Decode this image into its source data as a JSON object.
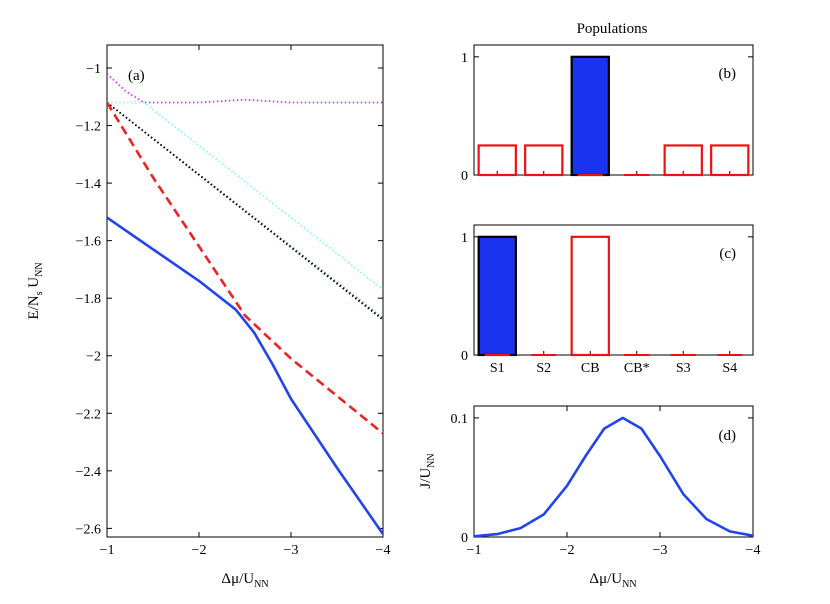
{
  "figure_title": "Populations",
  "chart_data": [
    {
      "id": "a",
      "type": "line",
      "panel_label": "(a)",
      "xlabel": "Δμ/U",
      "xlabel_sub": "NN",
      "ylabel_parts": [
        "E/N",
        "s",
        " U",
        "NN"
      ],
      "xlim": [
        -1,
        -4
      ],
      "ylim": [
        -2.63,
        -0.92
      ],
      "xticks": [
        -1,
        -2,
        -3,
        -4
      ],
      "xtick_labels": [
        "−1",
        "−2",
        "−3",
        "−4"
      ],
      "yticks": [
        -1,
        -1.2,
        -1.4,
        -1.6,
        -1.8,
        -2,
        -2.2,
        -2.4,
        -2.6
      ],
      "ytick_labels": [
        "−1",
        "−1.2",
        "−1.4",
        "−1.6",
        "−1.8",
        "−2",
        "−2.2",
        "−2.4",
        "−2.6"
      ],
      "series": [
        {
          "name": "magenta-dotted",
          "color": "#cc33ff",
          "style": "dotted",
          "x": [
            -1,
            -1.2,
            -1.4,
            -2,
            -2.5,
            -3,
            -3.5,
            -4
          ],
          "y": [
            -1.02,
            -1.08,
            -1.12,
            -1.12,
            -1.11,
            -1.12,
            -1.12,
            -1.12
          ]
        },
        {
          "name": "cyan-dotted",
          "color": "#7fffd4",
          "style": "dotted",
          "x": [
            -1,
            -1.4,
            -4
          ],
          "y": [
            -1.12,
            -1.12,
            -1.77
          ]
        },
        {
          "name": "green-dotted",
          "color": "#2ea043",
          "style": "dotted",
          "x": [
            -1,
            -4
          ],
          "y": [
            -1.12,
            -1.87
          ]
        },
        {
          "name": "black-dotted",
          "color": "#000000",
          "style": "dotted",
          "x": [
            -1,
            -4
          ],
          "y": [
            -1.12,
            -1.875
          ]
        },
        {
          "name": "red-dashed",
          "color": "#ee2222",
          "style": "dashed",
          "x": [
            -1,
            -1.5,
            -2,
            -2.5,
            -3,
            -3.5,
            -4
          ],
          "y": [
            -1.12,
            -1.38,
            -1.62,
            -1.86,
            -2.01,
            -2.14,
            -2.27
          ]
        },
        {
          "name": "blue-solid",
          "color": "#2244ee",
          "style": "solid",
          "x": [
            -1,
            -1.5,
            -2,
            -2.4,
            -2.6,
            -2.8,
            -3,
            -3.5,
            -4
          ],
          "y": [
            -1.52,
            -1.63,
            -1.74,
            -1.84,
            -1.92,
            -2.03,
            -2.15,
            -2.39,
            -2.62
          ]
        }
      ]
    },
    {
      "id": "b",
      "type": "bar",
      "panel_label": "(b)",
      "ylim": [
        0,
        1.1
      ],
      "yticks": [
        0,
        1
      ],
      "ytick_labels": [
        "0",
        "1"
      ],
      "categories": [
        "S1",
        "S2",
        "CB",
        "CB*",
        "S3",
        "S4"
      ],
      "series": [
        {
          "name": "filled",
          "fill": "#1a33ee",
          "stroke": "#000000",
          "values": [
            0,
            0,
            1,
            0,
            0,
            0
          ]
        },
        {
          "name": "open",
          "fill": "none",
          "stroke": "#ee1111",
          "values": [
            0.25,
            0.25,
            0,
            0,
            0.25,
            0.25
          ]
        }
      ]
    },
    {
      "id": "c",
      "type": "bar",
      "panel_label": "(c)",
      "ylim": [
        0,
        1.1
      ],
      "yticks": [
        0,
        1
      ],
      "ytick_labels": [
        "0",
        "1"
      ],
      "categories": [
        "S1",
        "S2",
        "CB",
        "CB*",
        "S3",
        "S4"
      ],
      "series": [
        {
          "name": "filled",
          "fill": "#1a33ee",
          "stroke": "#000000",
          "values": [
            1,
            0,
            0,
            0,
            0,
            0
          ]
        },
        {
          "name": "open",
          "fill": "none",
          "stroke": "#ee1111",
          "values": [
            0,
            0,
            1,
            0,
            0,
            0
          ]
        }
      ]
    },
    {
      "id": "d",
      "type": "line",
      "panel_label": "(d)",
      "xlabel": "Δμ/U",
      "xlabel_sub": "NN",
      "ylabel": "J/U",
      "ylabel_sub": "NN",
      "xlim": [
        -1,
        -4
      ],
      "ylim": [
        0,
        0.11
      ],
      "xticks": [
        -1,
        -2,
        -3,
        -4
      ],
      "xtick_labels": [
        "−1",
        "−2",
        "−3",
        "−4"
      ],
      "yticks": [
        0,
        0.1
      ],
      "ytick_labels": [
        "0",
        "0.1"
      ],
      "series": [
        {
          "name": "current",
          "color": "#2244ee",
          "style": "solid",
          "x": [
            -1,
            -1.25,
            -1.5,
            -1.75,
            -2,
            -2.2,
            -2.4,
            -2.6,
            -2.8,
            -3,
            -3.25,
            -3.5,
            -3.75,
            -4
          ],
          "y": [
            0.0006,
            0.0024,
            0.0075,
            0.019,
            0.043,
            0.068,
            0.091,
            0.1,
            0.091,
            0.068,
            0.036,
            0.015,
            0.0047,
            0.0011
          ]
        }
      ]
    }
  ]
}
